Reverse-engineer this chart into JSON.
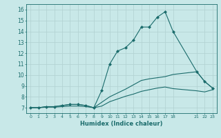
{
  "xlabel": "Humidex (Indice chaleur)",
  "ylabel": "",
  "background_color": "#c8e8e8",
  "grid_color": "#b0d0d0",
  "line_color": "#1a6b6b",
  "xlim": [
    -0.5,
    23.5
  ],
  "ylim": [
    6.5,
    16.5
  ],
  "yticks": [
    7,
    8,
    9,
    10,
    11,
    12,
    13,
    14,
    15,
    16
  ],
  "xtick_positions": [
    0,
    1,
    2,
    3,
    4,
    5,
    6,
    7,
    8,
    9,
    10,
    11,
    12,
    13,
    14,
    15,
    16,
    17,
    18,
    21,
    22,
    23
  ],
  "xtick_labels": [
    "0",
    "1",
    "2",
    "3",
    "4",
    "5",
    "6",
    "7",
    "8",
    "9",
    "10",
    "11",
    "12",
    "13",
    "14",
    "15",
    "16",
    "17",
    "18",
    "21",
    "22",
    "23"
  ],
  "series": [
    {
      "x": [
        0,
        1,
        2,
        3,
        4,
        5,
        6,
        7,
        8,
        9,
        10,
        11,
        12,
        13,
        14,
        15,
        16,
        17,
        18,
        21,
        22,
        23
      ],
      "y": [
        7.0,
        7.0,
        7.1,
        7.1,
        7.2,
        7.3,
        7.3,
        7.2,
        7.0,
        8.6,
        11.0,
        12.2,
        12.5,
        13.2,
        14.4,
        14.4,
        15.3,
        15.8,
        14.0,
        10.3,
        9.4,
        8.8
      ],
      "marker": "D",
      "color": "#1a6b6b",
      "linewidth": 0.8,
      "markersize": 2.0
    },
    {
      "x": [
        0,
        1,
        2,
        3,
        4,
        5,
        6,
        7,
        8,
        9,
        10,
        11,
        12,
        13,
        14,
        15,
        16,
        17,
        18,
        21,
        22,
        23
      ],
      "y": [
        7.0,
        7.0,
        7.1,
        7.1,
        7.2,
        7.3,
        7.3,
        7.2,
        7.0,
        7.5,
        8.0,
        8.35,
        8.7,
        9.1,
        9.5,
        9.65,
        9.75,
        9.85,
        10.05,
        10.3,
        9.4,
        8.8
      ],
      "marker": null,
      "color": "#1a6b6b",
      "linewidth": 0.8,
      "markersize": 0
    },
    {
      "x": [
        0,
        1,
        2,
        3,
        4,
        5,
        6,
        7,
        8,
        9,
        10,
        11,
        12,
        13,
        14,
        15,
        16,
        17,
        18,
        21,
        22,
        23
      ],
      "y": [
        7.0,
        7.0,
        7.05,
        7.05,
        7.1,
        7.15,
        7.15,
        7.1,
        7.0,
        7.15,
        7.55,
        7.8,
        8.05,
        8.25,
        8.5,
        8.65,
        8.8,
        8.9,
        8.75,
        8.55,
        8.45,
        8.65
      ],
      "marker": null,
      "color": "#1a6b6b",
      "linewidth": 0.8,
      "markersize": 0
    }
  ]
}
